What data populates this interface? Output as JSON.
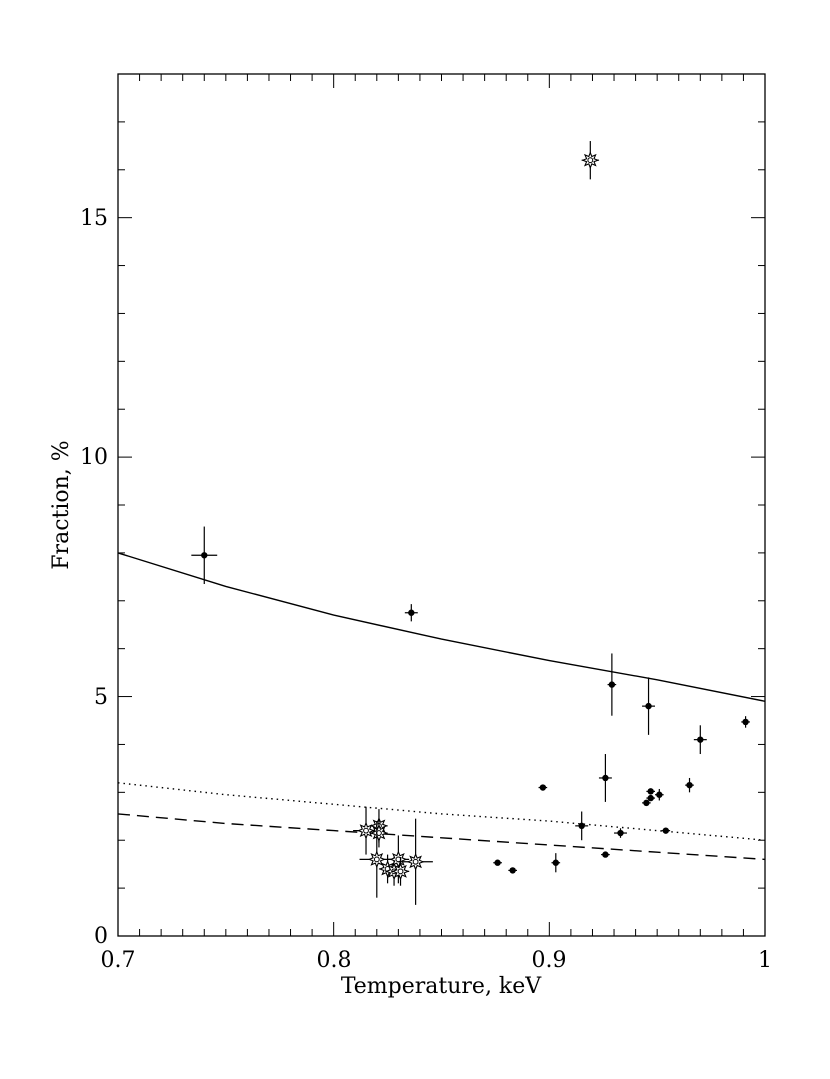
{
  "chart_data": {
    "type": "scatter",
    "title": "",
    "xlabel": "Temperature, keV",
    "ylabel": "Fraction, %",
    "xlim": [
      0.7,
      1.0
    ],
    "ylim": [
      0,
      18
    ],
    "x_ticks": [
      "0.7",
      "0.8",
      "0.9",
      "1"
    ],
    "y_ticks": [
      "0",
      "5",
      "10",
      "15"
    ],
    "grid": false,
    "legend": "none",
    "curves": [
      {
        "style": "solid",
        "x": [
          0.7,
          0.75,
          0.8,
          0.85,
          0.9,
          0.95,
          1.0
        ],
        "y": [
          8.0,
          7.3,
          6.7,
          6.2,
          5.75,
          5.35,
          4.9
        ]
      },
      {
        "style": "dotted",
        "x": [
          0.7,
          0.75,
          0.8,
          0.85,
          0.9,
          0.95,
          1.0
        ],
        "y": [
          3.2,
          2.95,
          2.75,
          2.55,
          2.4,
          2.2,
          2.0
        ]
      },
      {
        "style": "dashed",
        "x": [
          0.7,
          0.75,
          0.8,
          0.85,
          0.9,
          0.95,
          1.0
        ],
        "y": [
          2.55,
          2.35,
          2.2,
          2.05,
          1.9,
          1.75,
          1.6
        ]
      }
    ],
    "series": [
      {
        "marker": "dot",
        "points": [
          {
            "x": 0.74,
            "y": 7.95,
            "xerr": 0.006,
            "yerr": 0.6
          },
          {
            "x": 0.836,
            "y": 6.75,
            "xerr": 0.003,
            "yerr": 0.18
          },
          {
            "x": 0.929,
            "y": 5.25,
            "xerr": 0.002,
            "yerr": 0.65
          },
          {
            "x": 0.946,
            "y": 4.8,
            "xerr": 0.003,
            "yerr": 0.6
          },
          {
            "x": 0.991,
            "y": 4.47,
            "xerr": 0.002,
            "yerr": 0.12
          },
          {
            "x": 0.97,
            "y": 4.1,
            "xerr": 0.003,
            "yerr": 0.3
          },
          {
            "x": 0.926,
            "y": 3.3,
            "xerr": 0.003,
            "yerr": 0.5
          },
          {
            "x": 0.965,
            "y": 3.15,
            "xerr": 0.002,
            "yerr": 0.15
          },
          {
            "x": 0.897,
            "y": 3.1,
            "xerr": 0.002,
            "yerr": 0.05
          },
          {
            "x": 0.947,
            "y": 3.02,
            "xerr": 0.002,
            "yerr": 0.05
          },
          {
            "x": 0.951,
            "y": 2.95,
            "xerr": 0.002,
            "yerr": 0.12
          },
          {
            "x": 0.947,
            "y": 2.88,
            "xerr": 0.002,
            "yerr": 0.05
          },
          {
            "x": 0.945,
            "y": 2.78,
            "xerr": 0.002,
            "yerr": 0.05
          },
          {
            "x": 0.915,
            "y": 2.3,
            "xerr": 0.003,
            "yerr": 0.3
          },
          {
            "x": 0.954,
            "y": 2.2,
            "xerr": 0.002,
            "yerr": 0.05
          },
          {
            "x": 0.933,
            "y": 2.15,
            "xerr": 0.003,
            "yerr": 0.1
          },
          {
            "x": 0.926,
            "y": 1.7,
            "xerr": 0.002,
            "yerr": 0.05
          },
          {
            "x": 0.876,
            "y": 1.53,
            "xerr": 0.002,
            "yerr": 0.05
          },
          {
            "x": 0.903,
            "y": 1.53,
            "xerr": 0.002,
            "yerr": 0.2
          },
          {
            "x": 0.883,
            "y": 1.37,
            "xerr": 0.002,
            "yerr": 0.05
          }
        ]
      },
      {
        "marker": "star",
        "points": [
          {
            "x": 0.919,
            "y": 16.2,
            "xerr": 0.004,
            "yerr": 0.4
          },
          {
            "x": 0.815,
            "y": 2.2,
            "xerr": 0.006,
            "yerr": 0.5
          },
          {
            "x": 0.821,
            "y": 2.3,
            "xerr": 0.004,
            "yerr": 0.35
          },
          {
            "x": 0.821,
            "y": 2.15,
            "xerr": 0.004,
            "yerr": 0.3
          },
          {
            "x": 0.82,
            "y": 1.6,
            "xerr": 0.008,
            "yerr": 0.8
          },
          {
            "x": 0.825,
            "y": 1.4,
            "xerr": 0.004,
            "yerr": 0.3
          },
          {
            "x": 0.828,
            "y": 1.35,
            "xerr": 0.004,
            "yerr": 0.3
          },
          {
            "x": 0.83,
            "y": 1.6,
            "xerr": 0.005,
            "yerr": 0.5
          },
          {
            "x": 0.831,
            "y": 1.35,
            "xerr": 0.004,
            "yerr": 0.3
          },
          {
            "x": 0.838,
            "y": 1.55,
            "xerr": 0.008,
            "yerr": 0.9
          }
        ]
      }
    ]
  }
}
